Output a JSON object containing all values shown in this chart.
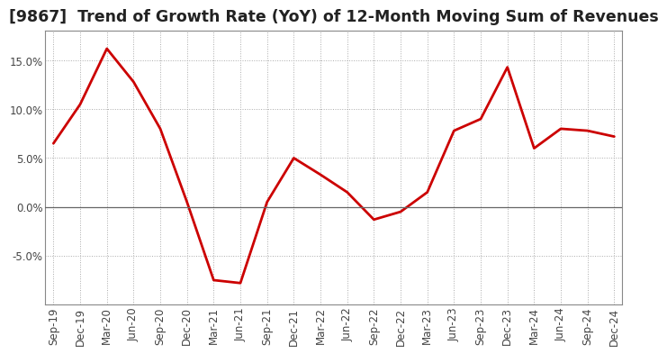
{
  "title": "[9867]  Trend of Growth Rate (YoY) of 12-Month Moving Sum of Revenues",
  "x_labels": [
    "Sep-19",
    "Dec-19",
    "Mar-20",
    "Jun-20",
    "Sep-20",
    "Dec-20",
    "Mar-21",
    "Jun-21",
    "Sep-21",
    "Dec-21",
    "Mar-22",
    "Jun-22",
    "Sep-22",
    "Dec-22",
    "Mar-23",
    "Jun-23",
    "Sep-23",
    "Dec-23",
    "Mar-24",
    "Jun-24",
    "Sep-24",
    "Dec-24"
  ],
  "y_values": [
    6.5,
    10.5,
    16.2,
    12.8,
    8.0,
    0.5,
    -7.5,
    -7.8,
    0.5,
    5.0,
    3.3,
    1.5,
    -1.3,
    -0.5,
    1.5,
    7.8,
    9.0,
    14.3,
    6.0,
    8.0,
    7.8,
    7.2
  ],
  "line_color": "#CC0000",
  "line_width": 2.0,
  "background_color": "#FFFFFF",
  "plot_bg_color": "#FFFFFF",
  "grid_color": "#AAAAAA",
  "zero_line_color": "#666666",
  "ylim": [
    -10.0,
    18.0
  ],
  "yticks": [
    -5.0,
    0.0,
    5.0,
    10.0,
    15.0
  ],
  "title_fontsize": 12.5,
  "tick_fontsize": 8.5
}
